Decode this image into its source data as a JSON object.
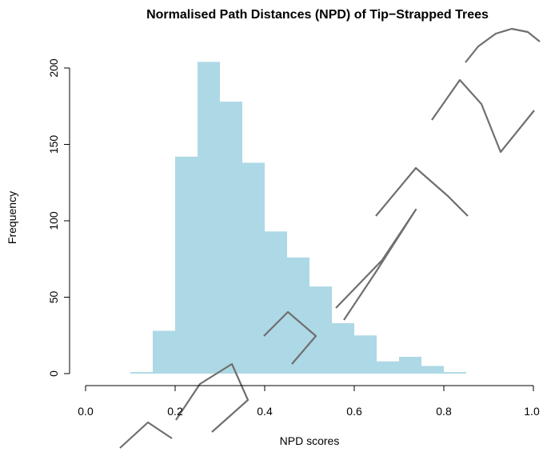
{
  "chart_data": {
    "type": "histogram",
    "title": "Normalised Path Distances (NPD) of Tip−Strapped Trees",
    "xlabel": "NPD scores",
    "ylabel": "Frequency",
    "xlim": [
      0.0,
      1.0
    ],
    "ylim": [
      0,
      205
    ],
    "x_ticks": [
      "0.0",
      "0.2",
      "0.4",
      "0.6",
      "0.8",
      "1.0"
    ],
    "y_ticks": [
      "0",
      "50",
      "100",
      "150",
      "200"
    ],
    "bar_color": "#add8e6",
    "bins": [
      {
        "from": 0.1,
        "to": 0.15,
        "count": 1
      },
      {
        "from": 0.15,
        "to": 0.2,
        "count": 28
      },
      {
        "from": 0.2,
        "to": 0.25,
        "count": 142
      },
      {
        "from": 0.25,
        "to": 0.3,
        "count": 204
      },
      {
        "from": 0.3,
        "to": 0.35,
        "count": 178
      },
      {
        "from": 0.35,
        "to": 0.4,
        "count": 138
      },
      {
        "from": 0.4,
        "to": 0.45,
        "count": 93
      },
      {
        "from": 0.45,
        "to": 0.5,
        "count": 76
      },
      {
        "from": 0.5,
        "to": 0.55,
        "count": 57
      },
      {
        "from": 0.55,
        "to": 0.6,
        "count": 33
      },
      {
        "from": 0.6,
        "to": 0.65,
        "count": 25
      },
      {
        "from": 0.65,
        "to": 0.7,
        "count": 8
      },
      {
        "from": 0.7,
        "to": 0.75,
        "count": 11
      },
      {
        "from": 0.75,
        "to": 0.8,
        "count": 5
      },
      {
        "from": 0.8,
        "to": 0.85,
        "count": 1
      }
    ]
  }
}
